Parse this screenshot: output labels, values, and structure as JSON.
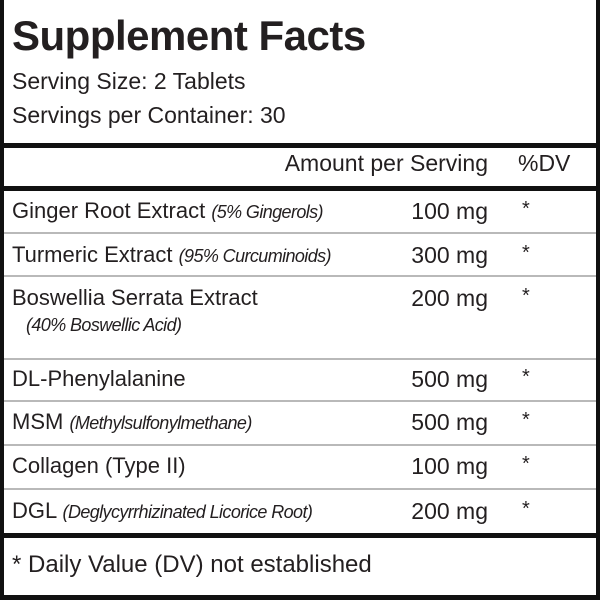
{
  "title": "Supplement Facts",
  "serving_size": "Serving Size: 2 Tablets",
  "servings_per_container": "Servings per Container: 30",
  "header": {
    "amount": "Amount per Serving",
    "dv": "%DV"
  },
  "rows": [
    {
      "name": "Ginger Root Extract",
      "note": "(5% Gingerols)",
      "amount": "100 mg",
      "dv": "*"
    },
    {
      "name": "Turmeric Extract",
      "note": "(95% Curcuminoids)",
      "amount": "300 mg",
      "dv": "*"
    },
    {
      "name": "Boswellia Serrata Extract",
      "note": "(40% Boswellic Acid)",
      "amount": "200 mg",
      "dv": "*"
    },
    {
      "name": "DL-Phenylalanine",
      "note": "",
      "amount": "500 mg",
      "dv": "*"
    },
    {
      "name": "MSM",
      "note": "(Methylsulfonylmethane)",
      "amount": "500 mg",
      "dv": "*"
    },
    {
      "name": "Collagen (Type II)",
      "note": "",
      "amount": "100 mg",
      "dv": "*"
    },
    {
      "name": "DGL",
      "note": "(Deglycyrrhizinated Licorice Root)",
      "amount": "200 mg",
      "dv": "*"
    }
  ],
  "footnote": "* Daily Value (DV) not established"
}
